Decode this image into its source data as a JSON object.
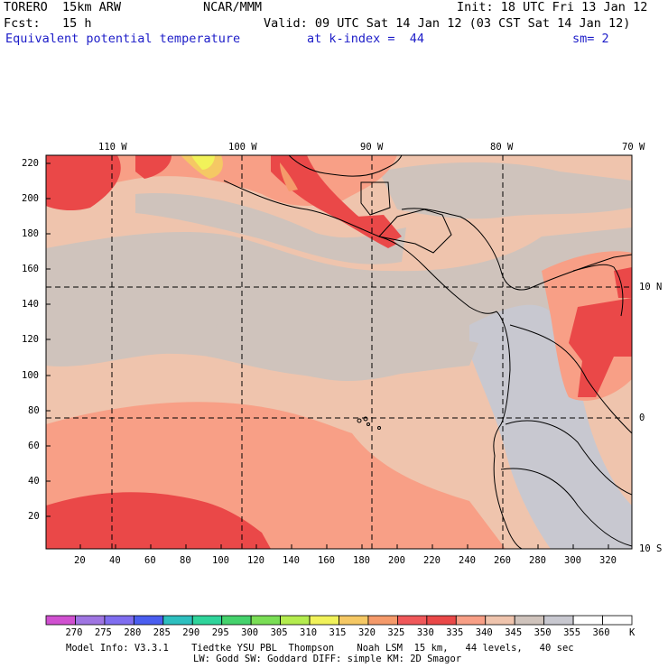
{
  "header": {
    "model": "TORERO  15km ARW",
    "center": "NCAR/MMM",
    "init": "Init: 18 UTC Fri 13 Jan 12",
    "fcst": "Fcst:   15 h",
    "valid": "Valid: 09 UTC Sat 14 Jan 12 (03 CST Sat 14 Jan 12)",
    "field": "Equivalent potential temperature",
    "level": "at k-index =  44",
    "smoothing": "sm= 2"
  },
  "map": {
    "lon_labels": [
      "110 W",
      "100 W",
      "90 W",
      "80 W",
      "70 W"
    ],
    "lat_labels": [
      "10 N",
      "0",
      "10 S"
    ],
    "y_ticks": [
      "220",
      "200",
      "180",
      "160",
      "140",
      "120",
      "100",
      "80",
      "60",
      "40",
      "20"
    ],
    "x_ticks": [
      "20",
      "40",
      "60",
      "80",
      "100",
      "120",
      "140",
      "160",
      "180",
      "200",
      "220",
      "240",
      "260",
      "280",
      "300",
      "320"
    ]
  },
  "colorbar": {
    "unit": "K",
    "labels": [
      "270",
      "275",
      "280",
      "285",
      "290",
      "295",
      "300",
      "305",
      "310",
      "315",
      "320",
      "325",
      "330",
      "335",
      "340",
      "345",
      "350",
      "355",
      "360"
    ],
    "colors": [
      "#d050d0",
      "#9f75e2",
      "#7f6df0",
      "#4a5ef0",
      "#2dbfbf",
      "#2fd49b",
      "#44d26c",
      "#7ade55",
      "#b4ec4e",
      "#f1f25a",
      "#f5c864",
      "#f59a6a",
      "#f0585a",
      "#ea4848",
      "#f89f86",
      "#efc4ad",
      "#cfc3bc",
      "#c8c8d0",
      "#ffffff",
      "#ffffff"
    ]
  },
  "footer": {
    "line1": "Model Info: V3.3.1    Tiedtke YSU PBL  Thompson    Noah LSM  15 km,   44 levels,   40 sec",
    "line2": "LW: Godd SW: Goddard DIFF: simple KM: 2D Smagor"
  }
}
